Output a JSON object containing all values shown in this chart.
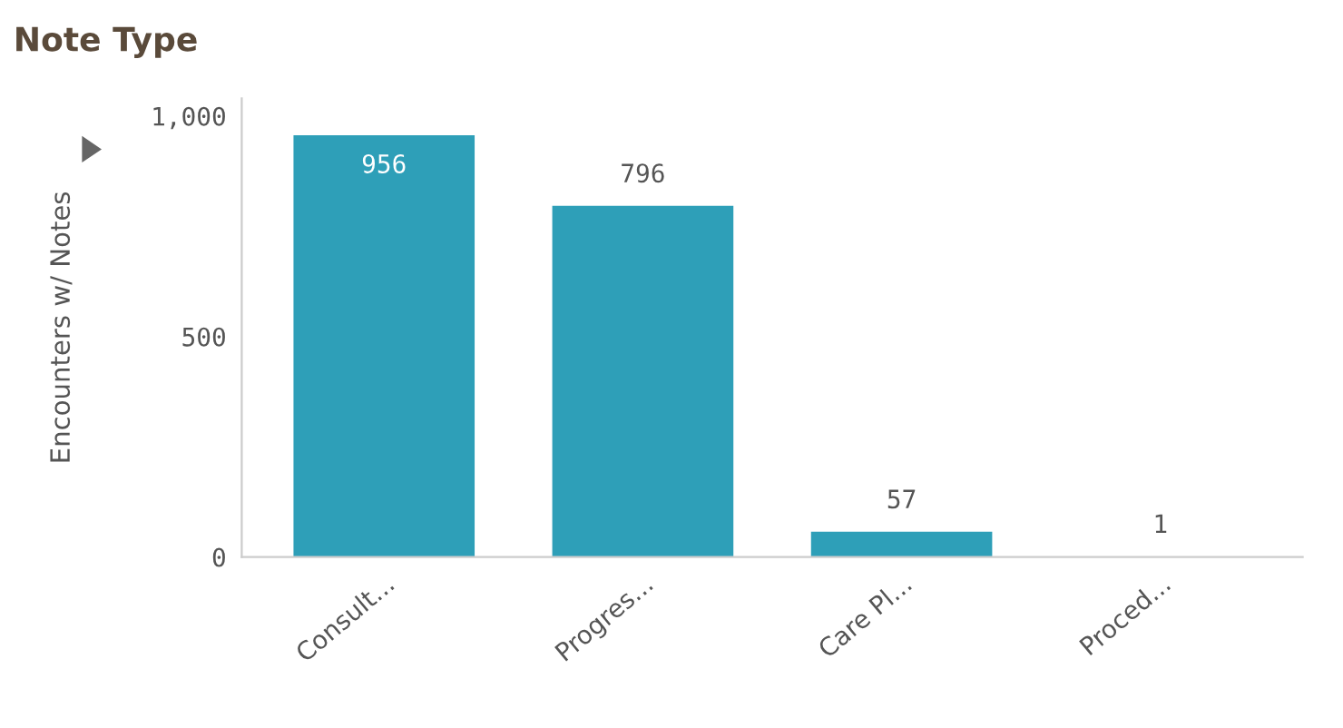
{
  "chart_data": {
    "type": "bar",
    "title": "Note Type",
    "ylabel": "Encounters w/ Notes",
    "categories": [
      "Consult...",
      "Progres...",
      "Care Pl...",
      "Proced..."
    ],
    "values": [
      956,
      796,
      57,
      1
    ],
    "color": "#2e9fb8",
    "ylim": [
      0,
      1040
    ],
    "yticks": [
      0,
      500,
      {
        "value": 1000,
        "label": "1,000"
      }
    ],
    "data_labels": true,
    "grid": false,
    "legend": false
  }
}
